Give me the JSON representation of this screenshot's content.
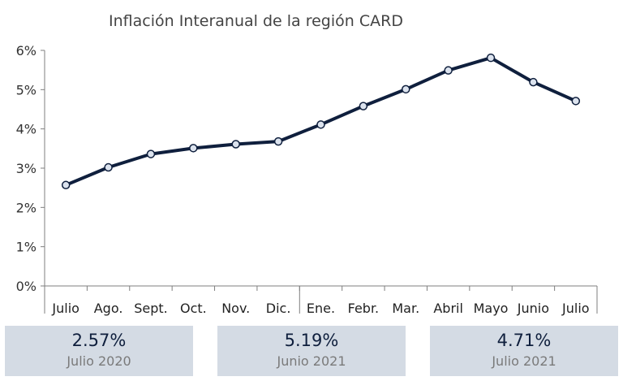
{
  "chart_data": {
    "type": "line",
    "title": "Inflación Interanual de la región CARD",
    "categories": [
      "Julio",
      "Ago.",
      "Sept.",
      "Oct.",
      "Nov.",
      "Dic.",
      "Ene.",
      "Febr.",
      "Mar.",
      "Abril",
      "Mayo",
      "Junio",
      "Julio"
    ],
    "series": [
      {
        "values": [
          2.57,
          3.02,
          3.36,
          3.51,
          3.61,
          3.68,
          4.11,
          4.58,
          5.01,
          5.49,
          5.81,
          5.19,
          4.71
        ]
      }
    ],
    "y_ticks": [
      "0%",
      "1%",
      "2%",
      "3%",
      "4%",
      "5%",
      "6%"
    ],
    "ylim": [
      0,
      6
    ],
    "year_separator_after_index": 5,
    "grid": false,
    "colors": {
      "line": "#0f1f3d",
      "marker_fill": "#dce3ee"
    }
  },
  "stats": [
    {
      "value": "2.57%",
      "label": "Julio 2020"
    },
    {
      "value": "5.19%",
      "label": "Junio 2021"
    },
    {
      "value": "4.71%",
      "label": "Julio 2021"
    }
  ],
  "colors": {
    "stat_box_bg": "#d4dbe4",
    "stat_value": "#0f1f3d",
    "stat_label": "#7a7a7a"
  }
}
